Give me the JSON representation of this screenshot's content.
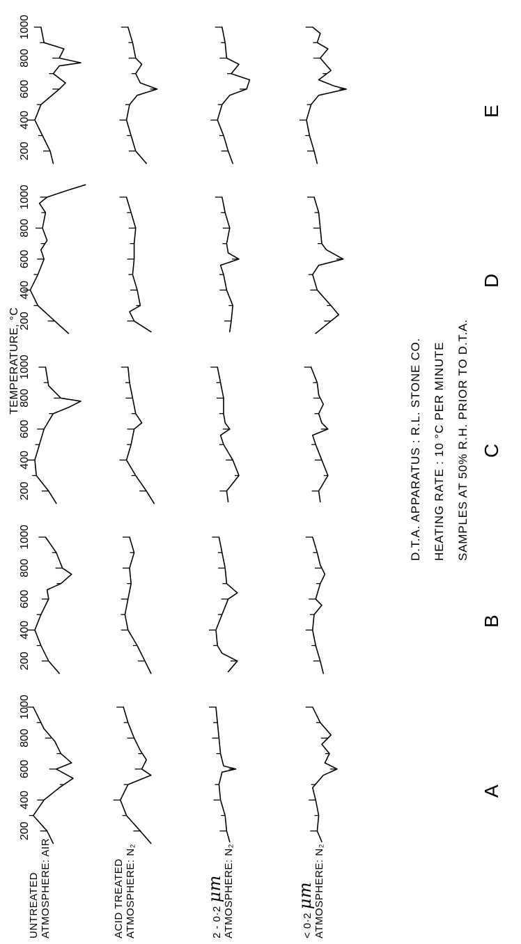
{
  "header": {
    "axis_title": "TEMPERATURE, °C"
  },
  "rows": [
    {
      "id": "untreated",
      "line1": "UNTREATED",
      "line2": "ATMOSPHERE: AIR"
    },
    {
      "id": "acid",
      "line1": "ACID TREATED",
      "line2": "ATMOSPHERE: N₂"
    },
    {
      "id": "coarse",
      "line1": "2 - 0·2 ",
      "unit": "μm",
      "line2": "ATMOSPHERE: N₂"
    },
    {
      "id": "fine",
      "line1": "< 0·2 ",
      "unit": "μm",
      "line2": "ATMOSPHERE: N₂"
    }
  ],
  "columns": [
    "A",
    "B",
    "C",
    "D",
    "E"
  ],
  "notes": {
    "line1": "D.T.A. APPARATUS : R.L. STONE CO.",
    "line2": "HEATING RATE : 10 °C PER MINUTE",
    "line3": "SAMPLES AT 50% R.H. PRIOR TO D.T.A."
  },
  "chart_data": {
    "type": "line",
    "title": "",
    "xlabel": "TEMPERATURE, °C",
    "ylabel": "",
    "xlim": [
      100,
      1000
    ],
    "x_ticks": [
      200,
      400,
      600,
      800,
      1000
    ],
    "x_tick_labels": [
      "200",
      "400",
      "600",
      "800",
      "1000"
    ],
    "panels": [
      {
        "column": "A",
        "series": [
          {
            "row": "untreated",
            "x": [
              120,
              200,
              300,
              400,
              480,
              540,
              600,
              640,
              700,
              780,
              860,
              940,
              1000
            ],
            "y": [
              -0.2,
              0.2,
              1.1,
              0.4,
              -0.6,
              -1.5,
              -0.4,
              -1.4,
              -0.7,
              -0.3,
              0.4,
              0.8,
              1.1
            ]
          },
          {
            "row": "acid",
            "x": [
              120,
              200,
              300,
              400,
              500,
              560,
              600,
              660,
              720,
              800,
              900,
              1000
            ],
            "y": [
              -0.9,
              -0.2,
              0.7,
              1.1,
              0.6,
              -0.9,
              -0.3,
              -0.6,
              -0.2,
              0.2,
              0.6,
              0.9
            ]
          },
          {
            "row": "coarse",
            "x": [
              130,
              200,
              300,
              400,
              500,
              580,
              600,
              620,
              700,
              800,
              900,
              1000
            ],
            "y": [
              0.1,
              0.3,
              0.4,
              0.7,
              0.8,
              0.6,
              -0.3,
              0.5,
              0.7,
              0.8,
              0.9,
              1.0
            ]
          },
          {
            "row": "fine",
            "x": [
              130,
              200,
              300,
              400,
              480,
              560,
              600,
              640,
              700,
              760,
              820,
              900,
              1000
            ],
            "y": [
              0.0,
              0.3,
              0.2,
              0.4,
              0.6,
              -0.1,
              -1.0,
              -0.2,
              -0.5,
              0.0,
              -0.6,
              0.1,
              0.6
            ]
          }
        ]
      },
      {
        "column": "B",
        "series": [
          {
            "row": "untreated",
            "x": [
              120,
              200,
              300,
              400,
              500,
              600,
              660,
              700,
              760,
              800,
              900,
              1000
            ],
            "y": [
              -0.6,
              0.1,
              0.6,
              1.0,
              0.6,
              0.1,
              0.2,
              -0.7,
              -1.4,
              -0.8,
              -0.4,
              0.3
            ]
          },
          {
            "row": "acid",
            "x": [
              120,
              200,
              300,
              400,
              500,
              600,
              700,
              800,
              900,
              1000
            ],
            "y": [
              -0.9,
              -0.5,
              0.0,
              0.6,
              0.8,
              0.6,
              0.4,
              0.5,
              0.2,
              0.5
            ]
          },
          {
            "row": "coarse",
            "x": [
              130,
              200,
              250,
              300,
              400,
              500,
              600,
              640,
              700,
              800,
              900,
              1000
            ],
            "y": [
              0.2,
              -0.4,
              0.6,
              0.9,
              1.0,
              0.6,
              0.2,
              -0.4,
              0.3,
              0.4,
              0.6,
              0.8
            ]
          },
          {
            "row": "fine",
            "x": [
              120,
              200,
              300,
              400,
              500,
              560,
              600,
              700,
              760,
              820,
              900,
              1000
            ],
            "y": [
              -0.1,
              0.1,
              0.4,
              0.6,
              0.5,
              0.0,
              0.4,
              0.1,
              -0.2,
              0.1,
              0.3,
              0.6
            ]
          }
        ]
      },
      {
        "column": "C",
        "series": [
          {
            "row": "untreated",
            "x": [
              120,
              200,
              300,
              400,
              500,
              600,
              700,
              740,
              780,
              800,
              880,
              1000
            ],
            "y": [
              -0.4,
              0.1,
              0.9,
              1.0,
              0.7,
              0.4,
              -0.2,
              -1.2,
              -2.0,
              -0.7,
              0.1,
              0.3
            ]
          },
          {
            "row": "acid",
            "x": [
              120,
              200,
              300,
              400,
              500,
              600,
              640,
              700,
              800,
              900,
              1000
            ],
            "y": [
              -1.1,
              -0.6,
              0.1,
              0.7,
              0.4,
              0.2,
              -0.3,
              0.1,
              0.3,
              0.5,
              0.6
            ]
          },
          {
            "row": "coarse",
            "x": [
              130,
              200,
              300,
              400,
              500,
              560,
              600,
              640,
              700,
              800,
              900,
              1000
            ],
            "y": [
              0.2,
              0.3,
              -0.5,
              -0.1,
              0.5,
              0.7,
              0.1,
              0.4,
              0.5,
              0.5,
              0.7,
              0.9
            ]
          },
          {
            "row": "fine",
            "x": [
              130,
              200,
              300,
              400,
              500,
              560,
              600,
              640,
              700,
              760,
              820,
              900,
              1000
            ],
            "y": [
              0.1,
              0.2,
              -0.4,
              0.0,
              0.4,
              0.6,
              -0.4,
              0.0,
              0.2,
              -0.1,
              0.2,
              0.3,
              0.7
            ]
          }
        ]
      },
      {
        "column": "D",
        "series": [
          {
            "row": "untreated",
            "x": [
              120,
              200,
              300,
              400,
              500,
              600,
              660,
              720,
              800,
              900,
              960,
              1000,
              1040,
              1080
            ],
            "y": [
              -1.2,
              -0.3,
              0.8,
              1.3,
              0.8,
              0.4,
              0.6,
              0.2,
              0.5,
              0.3,
              0.7,
              0.2,
              -1.0,
              -2.3
            ]
          },
          {
            "row": "acid",
            "x": [
              130,
              200,
              260,
              300,
              400,
              500,
              600,
              700,
              800,
              900,
              1000
            ],
            "y": [
              -0.9,
              0.2,
              0.5,
              -0.2,
              0.0,
              0.3,
              0.2,
              0.2,
              0.1,
              0.4,
              0.7
            ]
          },
          {
            "row": "coarse",
            "x": [
              130,
              200,
              300,
              400,
              500,
              560,
              600,
              640,
              700,
              800,
              900,
              1000
            ],
            "y": [
              0.1,
              0.0,
              -0.1,
              0.3,
              0.5,
              0.7,
              -0.5,
              0.2,
              0.3,
              0.1,
              0.4,
              0.6
            ]
          },
          {
            "row": "fine",
            "x": [
              120,
              200,
              240,
              300,
              400,
              500,
              560,
              600,
              660,
              700,
              800,
              900,
              1000
            ],
            "y": [
              0.4,
              -0.6,
              -1.1,
              -0.6,
              0.3,
              0.6,
              0.2,
              -1.4,
              -0.3,
              0.0,
              0.1,
              0.2,
              0.5
            ]
          }
        ]
      },
      {
        "column": "E",
        "series": [
          {
            "row": "untreated",
            "x": [
              120,
              200,
              300,
              400,
              500,
              600,
              640,
              700,
              750,
              770,
              800,
              860,
              900,
              1000
            ],
            "y": [
              -0.2,
              0.0,
              0.5,
              1.0,
              0.6,
              -0.6,
              -1.0,
              -0.2,
              -0.6,
              -2.0,
              -0.6,
              -0.9,
              0.4,
              0.6
            ]
          },
          {
            "row": "acid",
            "x": [
              120,
              200,
              300,
              400,
              500,
              560,
              600,
              640,
              700,
              760,
              800,
              900,
              1000
            ],
            "y": [
              -0.6,
              0.1,
              0.4,
              0.7,
              0.5,
              0.0,
              -1.3,
              -0.2,
              0.1,
              -0.3,
              0.1,
              0.3,
              0.6
            ]
          },
          {
            "row": "coarse",
            "x": [
              120,
              200,
              300,
              400,
              500,
              560,
              600,
              660,
              700,
              760,
              800,
              900,
              1000
            ],
            "y": [
              -0.1,
              0.2,
              0.5,
              0.9,
              0.6,
              0.1,
              -1.0,
              -1.2,
              0.0,
              -0.5,
              0.3,
              0.4,
              0.6
            ]
          },
          {
            "row": "fine",
            "x": [
              120,
              200,
              300,
              400,
              500,
              560,
              600,
              620,
              660,
              720,
              800,
              860,
              900,
              960,
              1000
            ],
            "y": [
              0.3,
              0.5,
              0.8,
              1.0,
              0.7,
              0.2,
              -1.6,
              -0.8,
              0.2,
              -0.6,
              0.1,
              -0.4,
              0.3,
              0.1,
              0.6
            ]
          }
        ]
      }
    ]
  }
}
